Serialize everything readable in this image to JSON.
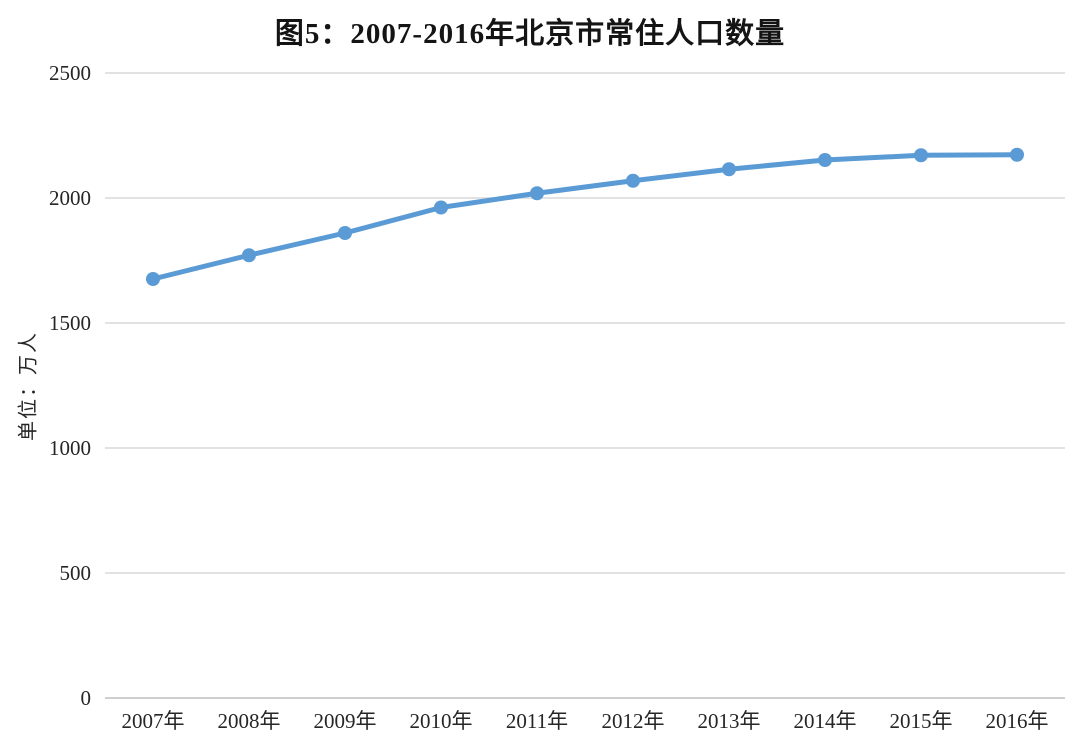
{
  "chart_data": {
    "type": "line",
    "title": "图5：2007-2016年北京市常住人口数量",
    "ylabel": "单位：万人",
    "xlabel": "",
    "categories": [
      "2007年",
      "2008年",
      "2009年",
      "2010年",
      "2011年",
      "2012年",
      "2013年",
      "2014年",
      "2015年",
      "2016年"
    ],
    "values": [
      1676,
      1771,
      1860,
      1962,
      2019,
      2069,
      2115,
      2152,
      2171,
      2173
    ],
    "ylim": [
      0,
      2500
    ],
    "yticks": [
      0,
      500,
      1000,
      1500,
      2000,
      2500
    ],
    "grid": true,
    "legend_position": "none",
    "line_color": "#5B9BD5",
    "marker_color": "#5B9BD5",
    "grid_color": "#D9D9D9",
    "axis_color": "#BFBFBF",
    "text_color": "#262626"
  }
}
